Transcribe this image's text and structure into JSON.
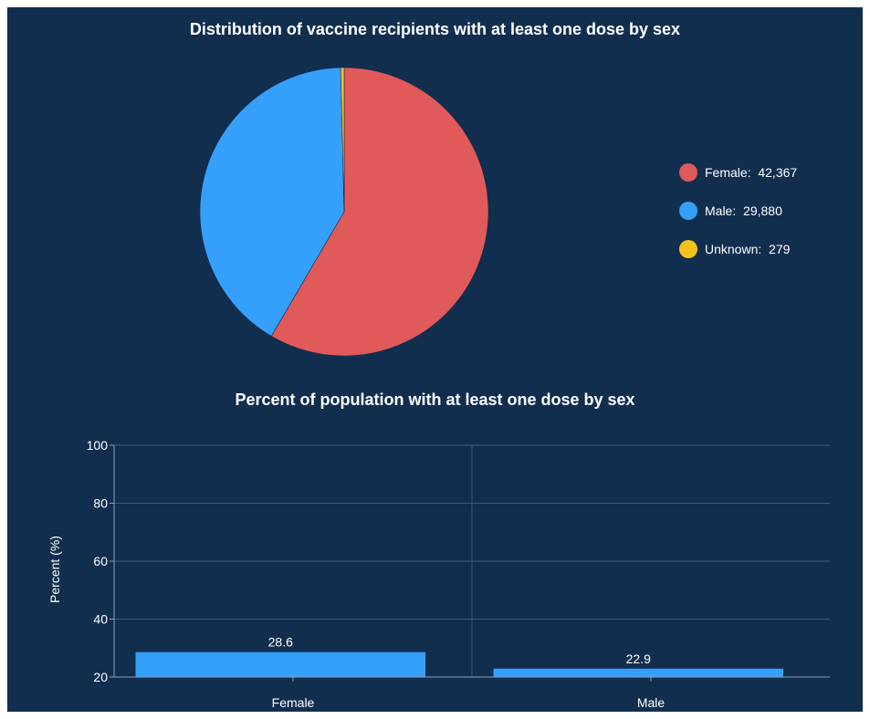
{
  "colors": {
    "background": "#112e4f",
    "female": "#e05a5a",
    "male": "#35a0fb",
    "unknown": "#f5c21b",
    "bar": "#35a0fb",
    "grid": "#3d5a78",
    "text": "#ffffff"
  },
  "pie": {
    "title": "Distribution of vaccine recipients with at least one dose by sex",
    "legend_separator": ":  ",
    "chart_data": {
      "type": "pie",
      "title": "Distribution of vaccine recipients with at least one dose by sex",
      "legend_position": "right",
      "slices": [
        {
          "label": "Female",
          "value": 42367,
          "display": "42,367",
          "color": "#e05a5a"
        },
        {
          "label": "Male",
          "value": 29880,
          "display": "29,880",
          "color": "#35a0fb"
        },
        {
          "label": "Unknown",
          "value": 279,
          "display": "279",
          "color": "#f5c21b"
        }
      ]
    }
  },
  "bar": {
    "title": "Percent of population with at least one dose by sex",
    "chart_data": {
      "type": "bar",
      "title": "Percent of population with at least one dose by sex",
      "xlabel": "",
      "ylabel": "Percent (%)",
      "categories": [
        "Female",
        "Male"
      ],
      "values": [
        28.6,
        22.9
      ],
      "value_labels": [
        "28.6",
        "22.9"
      ],
      "ylim": [
        20,
        100
      ],
      "yticks": [
        20,
        40,
        60,
        80,
        100
      ],
      "grid": true
    }
  }
}
